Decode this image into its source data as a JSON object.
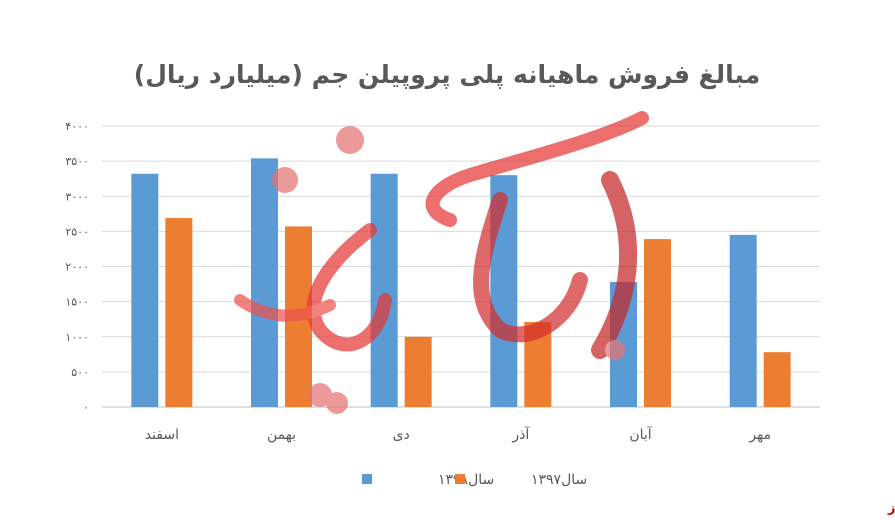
{
  "chart_data": {
    "type": "bar",
    "title": "مبالغ فروش ماهیانه پلی پروپیلن جم (میلیارد ریال)",
    "categories": [
      "مهر",
      "آبان",
      "آذر",
      "دی",
      "بهمن",
      "اسفند"
    ],
    "series": [
      {
        "name": "سال۱۳۹۸",
        "color": "#5b9bd5",
        "values": [
          2450,
          1780,
          3300,
          3320,
          3540,
          3320
        ]
      },
      {
        "name": "سال۱۳۹۷",
        "color": "#ed7d31",
        "values": [
          780,
          2390,
          1210,
          1000,
          2570,
          2690
        ]
      }
    ],
    "y_ticks": [
      {
        "value": 0,
        "label": "۰"
      },
      {
        "value": 500,
        "label": "۵۰۰"
      },
      {
        "value": 1000,
        "label": "۱۰۰۰"
      },
      {
        "value": 1500,
        "label": "۱۵۰۰"
      },
      {
        "value": 2000,
        "label": "۲۰۰۰"
      },
      {
        "value": 2500,
        "label": "۲۵۰۰"
      },
      {
        "value": 3000,
        "label": "۳۰۰۰"
      },
      {
        "value": 3500,
        "label": "۳۵۰۰"
      },
      {
        "value": 4000,
        "label": "۴۰۰۰"
      }
    ],
    "ylim": [
      0,
      4000
    ],
    "grid": true,
    "legend_position": "bottom",
    "xlabel": "",
    "ylabel": ""
  },
  "watermark": {
    "text": "بورس نیوز",
    "color": "#e57373"
  },
  "source_label": "بورس نیوز"
}
